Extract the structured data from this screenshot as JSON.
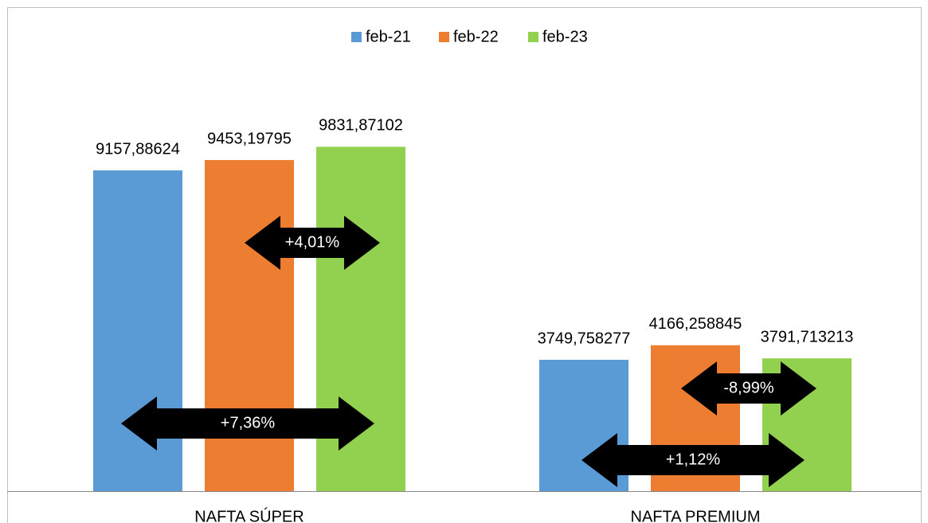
{
  "chart_data": {
    "type": "bar",
    "categories": [
      "NAFTA SÚPER",
      "NAFTA PREMIUM"
    ],
    "series": [
      {
        "name": "feb-21",
        "color": "#5b9bd5",
        "values": [
          9157.88624,
          3749.758277
        ],
        "value_labels": [
          "9157,88624",
          "3749,758277"
        ]
      },
      {
        "name": "feb-22",
        "color": "#ed7d31",
        "values": [
          9453.19795,
          4166.258845
        ],
        "value_labels": [
          "9453,19795",
          "4166,258845"
        ]
      },
      {
        "name": "feb-23",
        "color": "#92d050",
        "values": [
          9831.87102,
          3791.713213
        ],
        "value_labels": [
          "9831,87102",
          "3791,713213"
        ]
      }
    ],
    "annotations": [
      "+4,01%",
      "+7,36%",
      "-8,99%",
      "+1,12%"
    ],
    "ylim": [
      0,
      12000
    ],
    "legend": "top"
  }
}
